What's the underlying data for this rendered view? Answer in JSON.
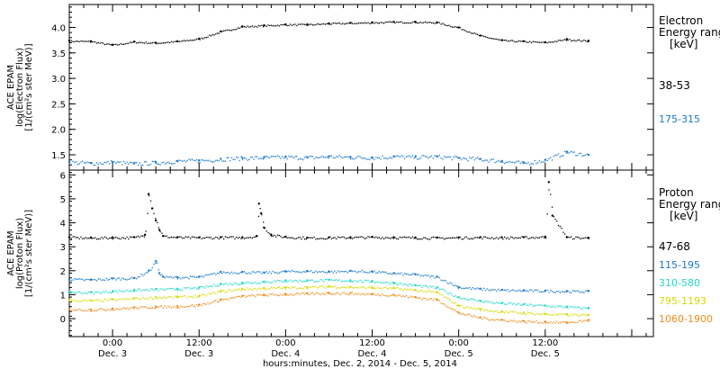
{
  "chart_data": [
    {
      "type": "scatter",
      "panel": "electron",
      "ylabel_lines": [
        "ACE EPAM",
        "log(Electron Flux)",
        "[1/(cm²s ster MeV)]"
      ],
      "legend_title_lines": [
        "Electron",
        "Energy range",
        "[keV]"
      ],
      "ylim": [
        1.2,
        4.45
      ],
      "yticks": [
        "1.5",
        "2.0",
        "2.5",
        "3.0",
        "3.5",
        "4.0"
      ],
      "ytick_values": [
        1.5,
        2.0,
        2.5,
        3.0,
        3.5,
        4.0
      ],
      "x_range_hours": [
        0,
        81
      ],
      "series": [
        {
          "name": "38-53",
          "color": "#000000",
          "x": [
            0,
            3,
            6,
            9,
            12,
            15,
            18,
            21,
            24,
            27,
            30,
            33,
            36,
            39,
            42,
            45,
            48,
            51,
            54,
            57,
            60,
            63,
            66,
            69,
            72
          ],
          "y": [
            3.74,
            3.73,
            3.66,
            3.72,
            3.7,
            3.73,
            3.78,
            3.92,
            4.02,
            4.04,
            4.06,
            4.06,
            4.08,
            4.09,
            4.1,
            4.11,
            4.11,
            4.1,
            4.0,
            3.84,
            3.75,
            3.73,
            3.71,
            3.77,
            3.74
          ]
        },
        {
          "name": "175-315",
          "color": "#1878d0",
          "x": [
            0,
            3,
            6,
            9,
            12,
            15,
            18,
            21,
            24,
            27,
            30,
            33,
            36,
            39,
            42,
            45,
            48,
            51,
            54,
            57,
            60,
            63,
            66,
            69,
            72
          ],
          "y": [
            1.36,
            1.34,
            1.36,
            1.33,
            1.35,
            1.38,
            1.39,
            1.42,
            1.44,
            1.45,
            1.46,
            1.45,
            1.47,
            1.46,
            1.45,
            1.47,
            1.46,
            1.47,
            1.44,
            1.42,
            1.38,
            1.34,
            1.4,
            1.56,
            1.5
          ]
        }
      ]
    },
    {
      "type": "scatter",
      "panel": "proton",
      "ylabel_lines": [
        "ACE EPAM",
        "log(Proton Flux)",
        "[1/(cm²s ster MeV)]"
      ],
      "legend_title_lines": [
        "Proton",
        "Energy range",
        "[keV]"
      ],
      "ylim": [
        -0.75,
        6.2
      ],
      "yticks": [
        "0",
        "1",
        "2",
        "3",
        "4",
        "5",
        "6"
      ],
      "ytick_values": [
        0,
        1,
        2,
        3,
        4,
        5,
        6
      ],
      "x_range_hours": [
        0,
        81
      ],
      "series": [
        {
          "name": "47-68",
          "color": "#000000",
          "x": [
            0,
            3,
            6,
            9,
            10.5,
            11,
            11.5,
            12,
            12.5,
            13,
            15,
            18,
            21,
            24,
            26,
            26.3,
            26.6,
            27,
            28,
            30,
            33,
            36,
            39,
            42,
            45,
            48,
            51,
            54,
            57,
            60,
            63,
            66,
            66.5,
            67,
            69,
            72
          ],
          "y": [
            3.4,
            3.38,
            3.39,
            3.4,
            3.5,
            5.2,
            4.6,
            4.1,
            3.7,
            3.45,
            3.4,
            3.39,
            3.4,
            3.4,
            3.45,
            4.8,
            4.4,
            3.8,
            3.5,
            3.42,
            3.38,
            3.39,
            3.4,
            3.41,
            3.4,
            3.39,
            3.38,
            3.39,
            3.4,
            3.39,
            3.4,
            3.42,
            5.7,
            4.3,
            3.4,
            3.38
          ]
        },
        {
          "name": "115-195",
          "color": "#1878d0",
          "x": [
            0,
            3,
            6,
            9,
            11,
            12,
            12.5,
            13,
            15,
            18,
            21,
            24,
            27,
            30,
            33,
            36,
            39,
            42,
            45,
            48,
            51,
            54,
            57,
            60,
            63,
            66,
            69,
            72
          ],
          "y": [
            1.65,
            1.63,
            1.68,
            1.7,
            2.0,
            2.4,
            1.9,
            1.75,
            1.73,
            1.75,
            1.95,
            1.95,
            1.93,
            1.98,
            1.99,
            1.97,
            2.0,
            1.97,
            1.9,
            1.85,
            1.75,
            1.32,
            1.25,
            1.2,
            1.18,
            1.17,
            1.15,
            1.15
          ]
        },
        {
          "name": "310-580",
          "color": "#20d8c8",
          "x": [
            0,
            3,
            6,
            9,
            12,
            15,
            18,
            21,
            24,
            27,
            30,
            33,
            36,
            39,
            42,
            45,
            48,
            51,
            54,
            57,
            60,
            63,
            66,
            69,
            72
          ],
          "y": [
            1.12,
            1.1,
            1.15,
            1.2,
            1.23,
            1.25,
            1.3,
            1.45,
            1.5,
            1.55,
            1.6,
            1.6,
            1.62,
            1.6,
            1.57,
            1.5,
            1.4,
            1.3,
            0.9,
            0.75,
            0.65,
            0.6,
            0.55,
            0.5,
            0.45
          ]
        },
        {
          "name": "795-1193",
          "color": "#d8d800",
          "x": [
            0,
            3,
            6,
            9,
            12,
            15,
            18,
            21,
            24,
            27,
            30,
            33,
            36,
            39,
            42,
            45,
            48,
            51,
            54,
            57,
            60,
            63,
            66,
            69,
            72
          ],
          "y": [
            0.78,
            0.76,
            0.8,
            0.85,
            0.9,
            0.92,
            0.95,
            1.15,
            1.25,
            1.28,
            1.3,
            1.32,
            1.35,
            1.33,
            1.3,
            1.28,
            1.2,
            1.1,
            0.55,
            0.4,
            0.3,
            0.25,
            0.2,
            0.18,
            0.15
          ]
        },
        {
          "name": "1060-1900",
          "color": "#f08c18",
          "x": [
            0,
            3,
            6,
            9,
            12,
            15,
            18,
            21,
            24,
            27,
            30,
            33,
            36,
            39,
            42,
            45,
            48,
            51,
            54,
            57,
            60,
            63,
            66,
            69,
            72
          ],
          "y": [
            0.4,
            0.38,
            0.42,
            0.47,
            0.5,
            0.52,
            0.58,
            0.8,
            0.95,
            1.0,
            1.03,
            1.05,
            1.08,
            1.07,
            1.03,
            1.0,
            0.9,
            0.8,
            0.25,
            0.05,
            -0.05,
            -0.1,
            -0.13,
            -0.15,
            -0.05
          ]
        }
      ]
    }
  ],
  "xaxis": {
    "ticks": [
      {
        "hour": 6,
        "time": "0:00",
        "date": "Dec. 3"
      },
      {
        "hour": 18,
        "time": "12:00",
        "date": "Dec. 3"
      },
      {
        "hour": 30,
        "time": "0:00",
        "date": "Dec. 4"
      },
      {
        "hour": 42,
        "time": "12:00",
        "date": "Dec. 4"
      },
      {
        "hour": 54,
        "time": "0:00",
        "date": "Dec. 5"
      },
      {
        "hour": 66,
        "time": "12:00",
        "date": "Dec. 5"
      }
    ],
    "minor_step_hours": 2,
    "label": "hours:minutes, Dec. 2, 2014 - Dec. 5, 2014"
  }
}
